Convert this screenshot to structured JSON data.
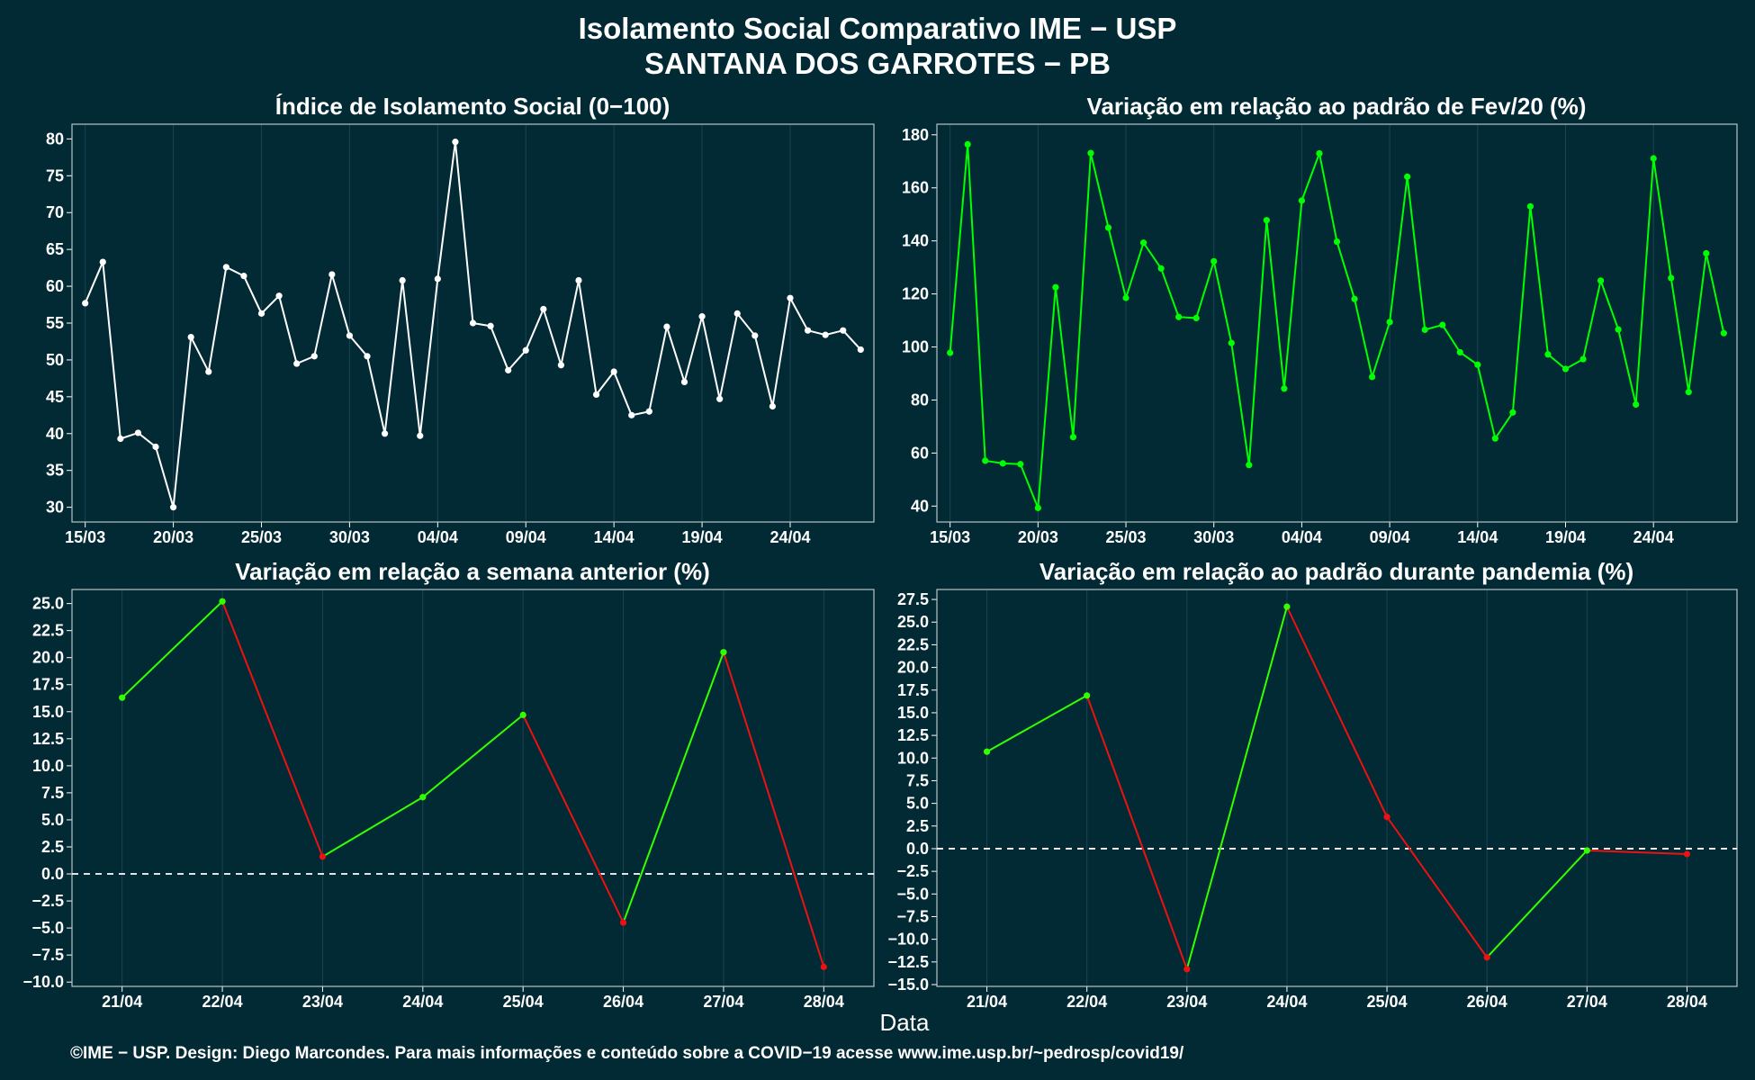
{
  "title_line1": "Isolamento Social Comparativo IME − USP",
  "title_line2": "SANTANA DOS GARROTES − PB",
  "x_axis_title": "Data",
  "footer": "©IME − USP. Design: Diego Marcondes. Para mais informações e conteúdo sobre a COVID−19 acesse www.ime.usp.br/~pedrosp/covid19/",
  "colors": {
    "background": "#022a35",
    "grid": "#1b4450",
    "white_series": "#ffffff",
    "green_series": "#00ff00",
    "increase": "#33ff00",
    "decrease": "#ee1111",
    "zero_line": "#ffffff"
  },
  "chart_data": [
    {
      "id": "indice",
      "type": "line",
      "title": "Índice de Isolamento Social (0−100)",
      "xlabel": "Data",
      "ylabel": "",
      "x_start": "15/03",
      "x_ticks": [
        "15/03",
        "20/03",
        "25/03",
        "30/03",
        "04/04",
        "09/04",
        "14/04",
        "19/04",
        "24/04"
      ],
      "ylim": [
        28,
        82
      ],
      "y_ticks": [
        "30",
        "35",
        "40",
        "45",
        "50",
        "55",
        "60",
        "65",
        "70",
        "75",
        "80"
      ],
      "grid": true,
      "color": "#ffffff",
      "x": [
        "15/03",
        "16/03",
        "17/03",
        "18/03",
        "19/03",
        "20/03",
        "21/03",
        "22/03",
        "23/03",
        "24/03",
        "25/03",
        "26/03",
        "27/03",
        "28/03",
        "29/03",
        "30/03",
        "31/03",
        "01/04",
        "02/04",
        "03/04",
        "04/04",
        "05/04",
        "06/04",
        "07/04",
        "08/04",
        "09/04",
        "10/04",
        "11/04",
        "12/04",
        "13/04",
        "14/04",
        "15/04",
        "16/04",
        "17/04",
        "18/04",
        "19/04",
        "20/04",
        "21/04",
        "22/04",
        "23/04",
        "24/04",
        "25/04",
        "26/04",
        "27/04",
        "28/04"
      ],
      "values": [
        57.7,
        63.3,
        39.3,
        40.1,
        38.2,
        30.0,
        53.1,
        48.4,
        62.6,
        61.4,
        56.3,
        58.7,
        49.5,
        50.5,
        61.6,
        53.3,
        50.5,
        40.0,
        60.8,
        39.7,
        61.0,
        79.6,
        55.0,
        54.6,
        48.6,
        51.3,
        56.9,
        49.3,
        60.8,
        45.3,
        48.4,
        42.5,
        43.0,
        54.5,
        47.0,
        55.9,
        44.7,
        56.3,
        53.3,
        43.7,
        58.4,
        54.0,
        53.4,
        54.0,
        51.4
      ]
    },
    {
      "id": "fev20",
      "type": "line",
      "title": "Variação em relação ao padrão de Fev/20 (%)",
      "xlabel": "Data",
      "ylabel": "",
      "x_start": "15/03",
      "x_ticks": [
        "15/03",
        "20/03",
        "25/03",
        "30/03",
        "04/04",
        "09/04",
        "14/04",
        "19/04",
        "24/04"
      ],
      "ylim": [
        34,
        184
      ],
      "y_ticks": [
        "40",
        "60",
        "80",
        "100",
        "120",
        "140",
        "160",
        "180"
      ],
      "grid": true,
      "color": "#00ff00",
      "x": [
        "15/03",
        "16/03",
        "17/03",
        "18/03",
        "19/03",
        "20/03",
        "21/03",
        "22/03",
        "23/03",
        "24/03",
        "25/03",
        "26/03",
        "27/03",
        "28/03",
        "29/03",
        "30/03",
        "31/03",
        "01/04",
        "02/04",
        "03/04",
        "04/04",
        "05/04",
        "06/04",
        "07/04",
        "08/04",
        "09/04",
        "10/04",
        "11/04",
        "12/04",
        "13/04",
        "14/04",
        "15/04",
        "16/04",
        "17/04",
        "18/04",
        "19/04",
        "20/04",
        "21/04",
        "22/04",
        "23/04",
        "24/04",
        "25/04",
        "26/04",
        "27/04",
        "28/04"
      ],
      "values": [
        97.8,
        176.4,
        57.1,
        56.1,
        55.8,
        39.3,
        122.5,
        66.0,
        173.1,
        145.0,
        118.5,
        139.3,
        129.6,
        111.3,
        110.9,
        132.3,
        101.5,
        55.5,
        147.8,
        84.3,
        155.2,
        173.0,
        139.7,
        118.1,
        88.7,
        109.4,
        164.2,
        106.5,
        108.3,
        98.0,
        93.3,
        65.5,
        75.3,
        153.0,
        97.2,
        91.7,
        95.4,
        125.0,
        106.6,
        78.3,
        171.1,
        126.0,
        83.0,
        135.3,
        105.2
      ]
    },
    {
      "id": "semana",
      "type": "line",
      "title": "Variação em relação a semana anterior (%)",
      "xlabel": "Data",
      "ylabel": "",
      "ylim": [
        -10.4,
        26.3
      ],
      "y_ticks": [
        "−10.0",
        "−7.5",
        "−5.0",
        "−2.5",
        "0.0",
        "2.5",
        "5.0",
        "7.5",
        "10.0",
        "12.5",
        "15.0",
        "17.5",
        "20.0",
        "22.5",
        "25.0"
      ],
      "grid": true,
      "reference_line": 0,
      "segment_coloring": "green when increasing, red when decreasing",
      "categories": [
        "21/04",
        "22/04",
        "23/04",
        "24/04",
        "25/04",
        "26/04",
        "27/04",
        "28/04"
      ],
      "values": [
        16.3,
        25.2,
        1.6,
        7.1,
        14.7,
        -4.5,
        20.5,
        -8.6
      ]
    },
    {
      "id": "pandemia",
      "type": "line",
      "title": "Variação em relação ao padrão durante pandemia (%)",
      "xlabel": "Data",
      "ylabel": "",
      "ylim": [
        -15.2,
        28.6
      ],
      "y_ticks": [
        "−15.0",
        "−12.5",
        "−10.0",
        "−7.5",
        "−5.0",
        "−2.5",
        "0.0",
        "2.5",
        "5.0",
        "7.5",
        "10.0",
        "12.5",
        "15.0",
        "17.5",
        "20.0",
        "22.5",
        "25.0",
        "27.5"
      ],
      "grid": true,
      "reference_line": 0,
      "segment_coloring": "green when increasing, red when decreasing",
      "categories": [
        "21/04",
        "22/04",
        "23/04",
        "24/04",
        "25/04",
        "26/04",
        "27/04",
        "28/04"
      ],
      "values": [
        10.7,
        16.9,
        -13.3,
        26.7,
        3.5,
        -12.0,
        -0.2,
        -0.6
      ]
    }
  ]
}
